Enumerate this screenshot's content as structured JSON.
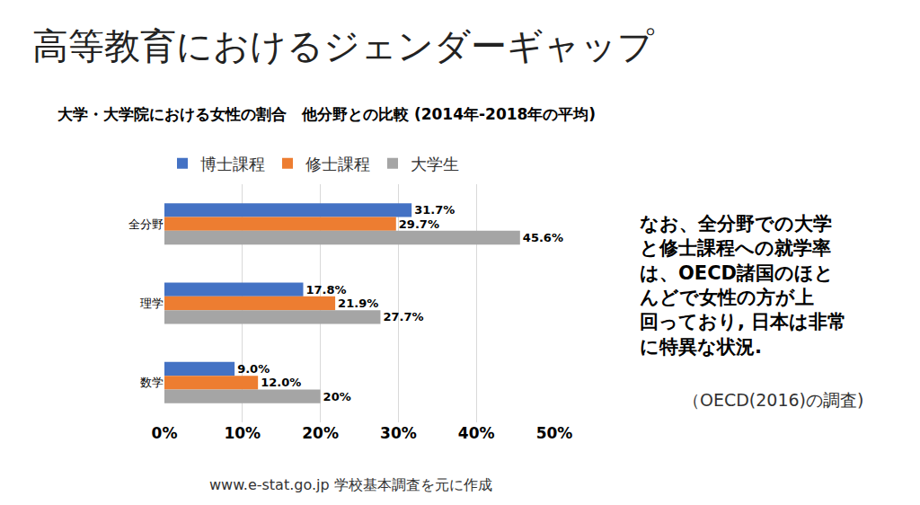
{
  "chart_data": {
    "type": "bar",
    "orientation": "horizontal",
    "title": "高等教育におけるジェンダーギャップ",
    "subtitle": "大学・大学院における女性の割合　他分野との比較 (2014年-2018年の平均)",
    "categories": [
      "全分野",
      "理学",
      "数学"
    ],
    "series": [
      {
        "name": "博士課程",
        "color": "#4472c4",
        "values": [
          31.7,
          17.8,
          9.0
        ],
        "value_labels": [
          "31.7%",
          "17.8%",
          "9.0%"
        ]
      },
      {
        "name": "修士課程",
        "color": "#ed7d31",
        "values": [
          29.7,
          21.9,
          12.0
        ],
        "value_labels": [
          "29.7%",
          "21.9%",
          "12.0%"
        ]
      },
      {
        "name": "大学生",
        "color": "#a5a5a5",
        "values": [
          45.6,
          27.7,
          20
        ],
        "value_labels": [
          "45.6%",
          "27.7%",
          "20%"
        ]
      }
    ],
    "xlim": [
      0,
      50
    ],
    "xticks": [
      {
        "value": 0,
        "label": "0%"
      },
      {
        "value": 10,
        "label": "10%"
      },
      {
        "value": 20,
        "label": "20%"
      },
      {
        "value": 30,
        "label": "30%"
      },
      {
        "value": 40,
        "label": "40%"
      },
      {
        "value": 50,
        "label": "50%"
      }
    ],
    "grid": true,
    "legend": "top",
    "data_labels": true,
    "annotations": [
      "なお、全分野での大学\nと修士課程への就学率\nは、OECD諸国のほと\nんどで女性の方が上\n回っており, 日本は非常\nに特異な状況.",
      "（OECD(2016)の調査)",
      "www.e-stat.go.jp 学校基本調査を元に作成"
    ]
  }
}
